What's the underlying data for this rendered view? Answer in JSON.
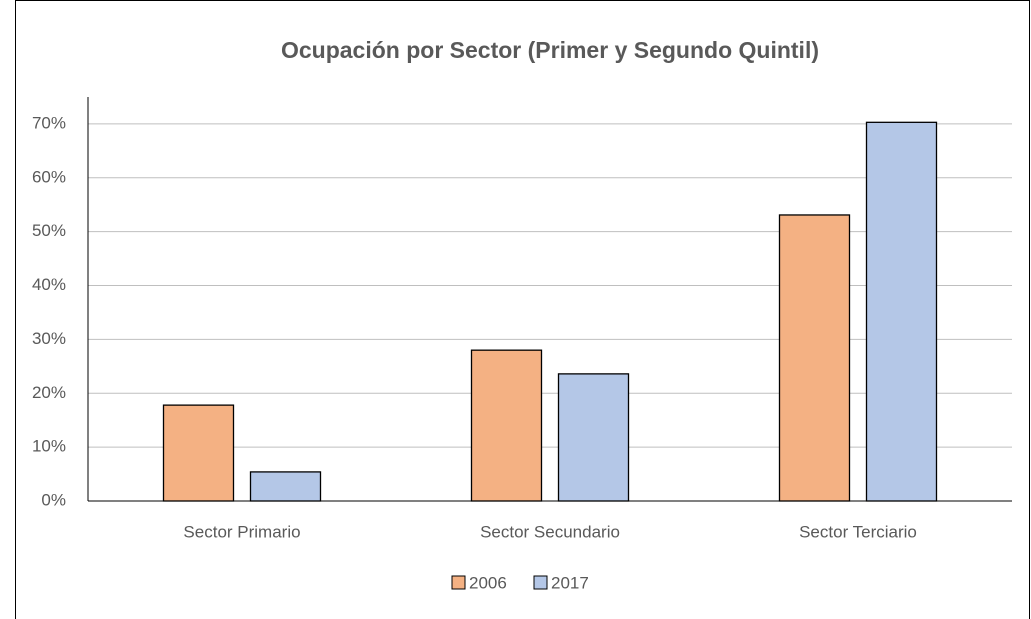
{
  "chart_data": {
    "type": "bar",
    "title": "Ocupación por Sector (Primer y Segundo Quintil)",
    "categories": [
      "Sector Primario",
      "Sector Secundario",
      "Sector Terciario"
    ],
    "series": [
      {
        "name": "2006",
        "color": "#f4b183",
        "values": [
          17.8,
          28.0,
          53.1
        ]
      },
      {
        "name": "2017",
        "color": "#b4c7e7",
        "values": [
          5.4,
          23.6,
          70.3
        ]
      }
    ],
    "ylim": [
      0,
      75
    ],
    "yticks": [
      {
        "value": 0,
        "label": "0%"
      },
      {
        "value": 10,
        "label": "10%"
      },
      {
        "value": 20,
        "label": "20%"
      },
      {
        "value": 30,
        "label": "30%"
      },
      {
        "value": 40,
        "label": "40%"
      },
      {
        "value": 50,
        "label": "50%"
      },
      {
        "value": 60,
        "label": "60%"
      },
      {
        "value": 70,
        "label": "70%"
      }
    ],
    "grid": true,
    "legend": "bottom"
  }
}
